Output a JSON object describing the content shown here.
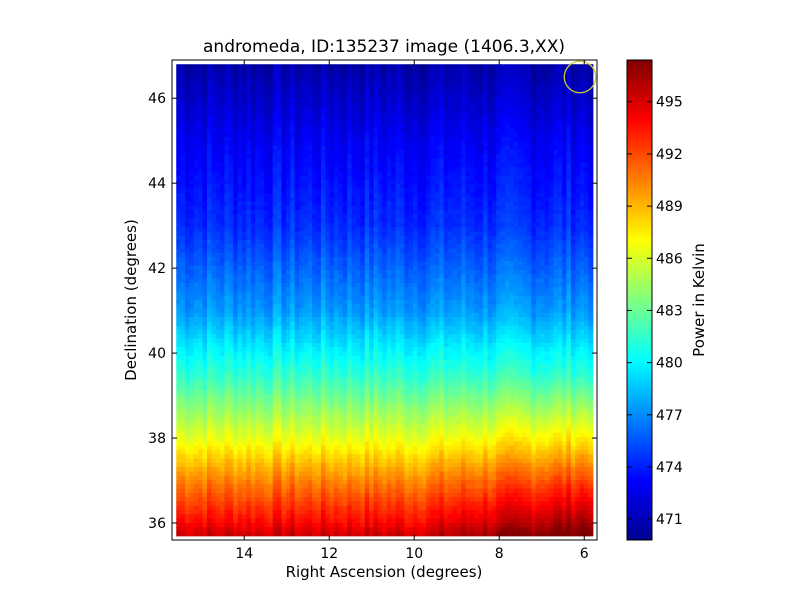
{
  "chart_data": {
    "type": "heatmap",
    "title": "andromeda, ID:135237 image (1406.3,XX)",
    "xlabel": "Right Ascension (degrees)",
    "ylabel": "Declination (degrees)",
    "xlim": [
      15.7,
      5.7
    ],
    "ylim": [
      35.6,
      46.9
    ],
    "x_ticks": [
      14,
      12,
      10,
      8,
      6
    ],
    "x_tick_labels": [
      "14",
      "12",
      "10",
      "8",
      "6"
    ],
    "y_ticks": [
      36,
      38,
      40,
      42,
      44,
      46
    ],
    "y_tick_labels": [
      "36",
      "38",
      "40",
      "42",
      "44",
      "46"
    ],
    "colorbar": {
      "label": "Power in Kelvin",
      "range": [
        469.8,
        497.4
      ],
      "ticks": [
        471,
        474,
        477,
        480,
        483,
        486,
        489,
        492,
        495
      ],
      "tick_labels": [
        "471",
        "474",
        "477",
        "480",
        "483",
        "486",
        "489",
        "492",
        "495"
      ],
      "colormap": "jet"
    },
    "data_extent": {
      "ra": [
        15.6,
        5.8
      ],
      "dec": [
        35.7,
        46.8
      ]
    },
    "gradient_profile": [
      {
        "dec": 46.8,
        "value": 471.0
      },
      {
        "dec": 45.0,
        "value": 473.0
      },
      {
        "dec": 43.0,
        "value": 474.5
      },
      {
        "dec": 41.0,
        "value": 477.5
      },
      {
        "dec": 39.5,
        "value": 481.5
      },
      {
        "dec": 38.0,
        "value": 486.5
      },
      {
        "dec": 37.0,
        "value": 490.5
      },
      {
        "dec": 36.0,
        "value": 494.0
      },
      {
        "dec": 35.7,
        "value": 495.5
      }
    ],
    "east_west_excess": {
      "ra_low_edge": 5.8,
      "extra_at_south": 3.0
    },
    "beam_marker": {
      "ra": 6.1,
      "dec": 46.5,
      "radius_deg": 0.37,
      "color": "#c8c832"
    },
    "grid": false,
    "legend": "none"
  }
}
